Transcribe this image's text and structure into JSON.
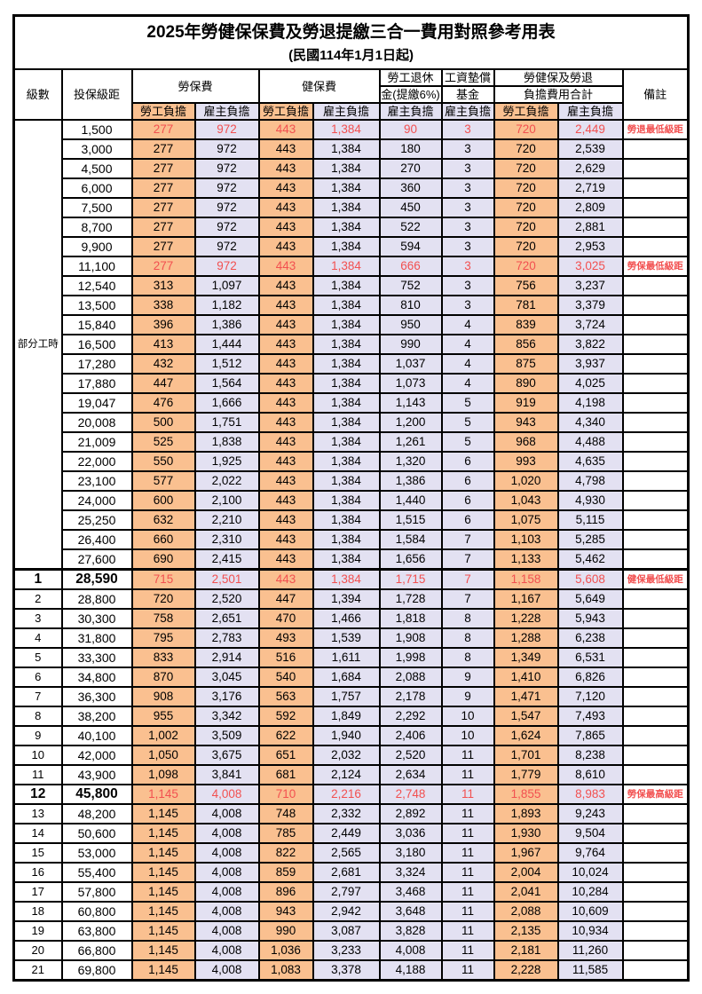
{
  "page": {
    "title": "2025年勞健保保費及勞退提繳三合一費用對照參考用表",
    "subtitle": "(民國114年1月1日起)"
  },
  "table": {
    "headers": {
      "level": "級數",
      "bracket": "投保級距",
      "labor_insurance": "勞保費",
      "health_insurance": "健保費",
      "pension_line1": "勞工退休",
      "pension_line2": "金(提繳6%)",
      "wage_arrears_line1": "工資墊償",
      "wage_arrears_line2": "基金",
      "total_line1": "勞健保及勞退",
      "total_line2": "負擔費用合計",
      "remark": "備註",
      "employee_share": "勞工負擔",
      "employer_share": "雇主負擔"
    },
    "part_time_label": "部分工時",
    "colors": {
      "employee_bg": "#FAC090",
      "employer_bg": "#E3E1F2",
      "highlight_text": "#F25050"
    },
    "rows": [
      {
        "level": "",
        "bracket": "1,500",
        "values": [
          "277",
          "972",
          "443",
          "1,384",
          "90",
          "3",
          "720",
          "2,449"
        ],
        "remark": "勞退最低級距",
        "highlight": true,
        "bold": false
      },
      {
        "level": "",
        "bracket": "3,000",
        "values": [
          "277",
          "972",
          "443",
          "1,384",
          "180",
          "3",
          "720",
          "2,539"
        ],
        "remark": "",
        "highlight": false,
        "bold": false
      },
      {
        "level": "",
        "bracket": "4,500",
        "values": [
          "277",
          "972",
          "443",
          "1,384",
          "270",
          "3",
          "720",
          "2,629"
        ],
        "remark": "",
        "highlight": false,
        "bold": false
      },
      {
        "level": "",
        "bracket": "6,000",
        "values": [
          "277",
          "972",
          "443",
          "1,384",
          "360",
          "3",
          "720",
          "2,719"
        ],
        "remark": "",
        "highlight": false,
        "bold": false
      },
      {
        "level": "",
        "bracket": "7,500",
        "values": [
          "277",
          "972",
          "443",
          "1,384",
          "450",
          "3",
          "720",
          "2,809"
        ],
        "remark": "",
        "highlight": false,
        "bold": false
      },
      {
        "level": "",
        "bracket": "8,700",
        "values": [
          "277",
          "972",
          "443",
          "1,384",
          "522",
          "3",
          "720",
          "2,881"
        ],
        "remark": "",
        "highlight": false,
        "bold": false
      },
      {
        "level": "",
        "bracket": "9,900",
        "values": [
          "277",
          "972",
          "443",
          "1,384",
          "594",
          "3",
          "720",
          "2,953"
        ],
        "remark": "",
        "highlight": false,
        "bold": false
      },
      {
        "level": "",
        "bracket": "11,100",
        "values": [
          "277",
          "972",
          "443",
          "1,384",
          "666",
          "3",
          "720",
          "3,025"
        ],
        "remark": "勞保最低級距",
        "highlight": true,
        "bold": false
      },
      {
        "level": "",
        "bracket": "12,540",
        "values": [
          "313",
          "1,097",
          "443",
          "1,384",
          "752",
          "3",
          "756",
          "3,237"
        ],
        "remark": "",
        "highlight": false,
        "bold": false
      },
      {
        "level": "",
        "bracket": "13,500",
        "values": [
          "338",
          "1,182",
          "443",
          "1,384",
          "810",
          "3",
          "781",
          "3,379"
        ],
        "remark": "",
        "highlight": false,
        "bold": false
      },
      {
        "level": "",
        "bracket": "15,840",
        "values": [
          "396",
          "1,386",
          "443",
          "1,384",
          "950",
          "4",
          "839",
          "3,724"
        ],
        "remark": "",
        "highlight": false,
        "bold": false
      },
      {
        "level": "",
        "bracket": "16,500",
        "values": [
          "413",
          "1,444",
          "443",
          "1,384",
          "990",
          "4",
          "856",
          "3,822"
        ],
        "remark": "",
        "highlight": false,
        "bold": false
      },
      {
        "level": "",
        "bracket": "17,280",
        "values": [
          "432",
          "1,512",
          "443",
          "1,384",
          "1,037",
          "4",
          "875",
          "3,937"
        ],
        "remark": "",
        "highlight": false,
        "bold": false
      },
      {
        "level": "",
        "bracket": "17,880",
        "values": [
          "447",
          "1,564",
          "443",
          "1,384",
          "1,073",
          "4",
          "890",
          "4,025"
        ],
        "remark": "",
        "highlight": false,
        "bold": false
      },
      {
        "level": "",
        "bracket": "19,047",
        "values": [
          "476",
          "1,666",
          "443",
          "1,384",
          "1,143",
          "5",
          "919",
          "4,198"
        ],
        "remark": "",
        "highlight": false,
        "bold": false
      },
      {
        "level": "",
        "bracket": "20,008",
        "values": [
          "500",
          "1,751",
          "443",
          "1,384",
          "1,200",
          "5",
          "943",
          "4,340"
        ],
        "remark": "",
        "highlight": false,
        "bold": false
      },
      {
        "level": "",
        "bracket": "21,009",
        "values": [
          "525",
          "1,838",
          "443",
          "1,384",
          "1,261",
          "5",
          "968",
          "4,488"
        ],
        "remark": "",
        "highlight": false,
        "bold": false
      },
      {
        "level": "",
        "bracket": "22,000",
        "values": [
          "550",
          "1,925",
          "443",
          "1,384",
          "1,320",
          "6",
          "993",
          "4,635"
        ],
        "remark": "",
        "highlight": false,
        "bold": false
      },
      {
        "level": "",
        "bracket": "23,100",
        "values": [
          "577",
          "2,022",
          "443",
          "1,384",
          "1,386",
          "6",
          "1,020",
          "4,798"
        ],
        "remark": "",
        "highlight": false,
        "bold": false
      },
      {
        "level": "",
        "bracket": "24,000",
        "values": [
          "600",
          "2,100",
          "443",
          "1,384",
          "1,440",
          "6",
          "1,043",
          "4,930"
        ],
        "remark": "",
        "highlight": false,
        "bold": false
      },
      {
        "level": "",
        "bracket": "25,250",
        "values": [
          "632",
          "2,210",
          "443",
          "1,384",
          "1,515",
          "6",
          "1,075",
          "5,115"
        ],
        "remark": "",
        "highlight": false,
        "bold": false
      },
      {
        "level": "",
        "bracket": "26,400",
        "values": [
          "660",
          "2,310",
          "443",
          "1,384",
          "1,584",
          "7",
          "1,103",
          "5,285"
        ],
        "remark": "",
        "highlight": false,
        "bold": false
      },
      {
        "level": "",
        "bracket": "27,600",
        "values": [
          "690",
          "2,415",
          "443",
          "1,384",
          "1,656",
          "7",
          "1,133",
          "5,462"
        ],
        "remark": "",
        "highlight": false,
        "bold": false
      },
      {
        "level": "1",
        "bracket": "28,590",
        "values": [
          "715",
          "2,501",
          "443",
          "1,384",
          "1,715",
          "7",
          "1,158",
          "5,608"
        ],
        "remark": "健保最低級距",
        "highlight": true,
        "bold": true
      },
      {
        "level": "2",
        "bracket": "28,800",
        "values": [
          "720",
          "2,520",
          "447",
          "1,394",
          "1,728",
          "7",
          "1,167",
          "5,649"
        ],
        "remark": "",
        "highlight": false,
        "bold": false
      },
      {
        "level": "3",
        "bracket": "30,300",
        "values": [
          "758",
          "2,651",
          "470",
          "1,466",
          "1,818",
          "8",
          "1,228",
          "5,943"
        ],
        "remark": "",
        "highlight": false,
        "bold": false
      },
      {
        "level": "4",
        "bracket": "31,800",
        "values": [
          "795",
          "2,783",
          "493",
          "1,539",
          "1,908",
          "8",
          "1,288",
          "6,238"
        ],
        "remark": "",
        "highlight": false,
        "bold": false
      },
      {
        "level": "5",
        "bracket": "33,300",
        "values": [
          "833",
          "2,914",
          "516",
          "1,611",
          "1,998",
          "8",
          "1,349",
          "6,531"
        ],
        "remark": "",
        "highlight": false,
        "bold": false
      },
      {
        "level": "6",
        "bracket": "34,800",
        "values": [
          "870",
          "3,045",
          "540",
          "1,684",
          "2,088",
          "9",
          "1,410",
          "6,826"
        ],
        "remark": "",
        "highlight": false,
        "bold": false
      },
      {
        "level": "7",
        "bracket": "36,300",
        "values": [
          "908",
          "3,176",
          "563",
          "1,757",
          "2,178",
          "9",
          "1,471",
          "7,120"
        ],
        "remark": "",
        "highlight": false,
        "bold": false
      },
      {
        "level": "8",
        "bracket": "38,200",
        "values": [
          "955",
          "3,342",
          "592",
          "1,849",
          "2,292",
          "10",
          "1,547",
          "7,493"
        ],
        "remark": "",
        "highlight": false,
        "bold": false
      },
      {
        "level": "9",
        "bracket": "40,100",
        "values": [
          "1,002",
          "3,509",
          "622",
          "1,940",
          "2,406",
          "10",
          "1,624",
          "7,865"
        ],
        "remark": "",
        "highlight": false,
        "bold": false
      },
      {
        "level": "10",
        "bracket": "42,000",
        "values": [
          "1,050",
          "3,675",
          "651",
          "2,032",
          "2,520",
          "11",
          "1,701",
          "8,238"
        ],
        "remark": "",
        "highlight": false,
        "bold": false
      },
      {
        "level": "11",
        "bracket": "43,900",
        "values": [
          "1,098",
          "3,841",
          "681",
          "2,124",
          "2,634",
          "11",
          "1,779",
          "8,610"
        ],
        "remark": "",
        "highlight": false,
        "bold": false
      },
      {
        "level": "12",
        "bracket": "45,800",
        "values": [
          "1,145",
          "4,008",
          "710",
          "2,216",
          "2,748",
          "11",
          "1,855",
          "8,983"
        ],
        "remark": "勞保最高級距",
        "highlight": true,
        "bold": true
      },
      {
        "level": "13",
        "bracket": "48,200",
        "values": [
          "1,145",
          "4,008",
          "748",
          "2,332",
          "2,892",
          "11",
          "1,893",
          "9,243"
        ],
        "remark": "",
        "highlight": false,
        "bold": false
      },
      {
        "level": "14",
        "bracket": "50,600",
        "values": [
          "1,145",
          "4,008",
          "785",
          "2,449",
          "3,036",
          "11",
          "1,930",
          "9,504"
        ],
        "remark": "",
        "highlight": false,
        "bold": false
      },
      {
        "level": "15",
        "bracket": "53,000",
        "values": [
          "1,145",
          "4,008",
          "822",
          "2,565",
          "3,180",
          "11",
          "1,967",
          "9,764"
        ],
        "remark": "",
        "highlight": false,
        "bold": false
      },
      {
        "level": "16",
        "bracket": "55,400",
        "values": [
          "1,145",
          "4,008",
          "859",
          "2,681",
          "3,324",
          "11",
          "2,004",
          "10,024"
        ],
        "remark": "",
        "highlight": false,
        "bold": false
      },
      {
        "level": "17",
        "bracket": "57,800",
        "values": [
          "1,145",
          "4,008",
          "896",
          "2,797",
          "3,468",
          "11",
          "2,041",
          "10,284"
        ],
        "remark": "",
        "highlight": false,
        "bold": false
      },
      {
        "level": "18",
        "bracket": "60,800",
        "values": [
          "1,145",
          "4,008",
          "943",
          "2,942",
          "3,648",
          "11",
          "2,088",
          "10,609"
        ],
        "remark": "",
        "highlight": false,
        "bold": false
      },
      {
        "level": "19",
        "bracket": "63,800",
        "values": [
          "1,145",
          "4,008",
          "990",
          "3,087",
          "3,828",
          "11",
          "2,135",
          "10,934"
        ],
        "remark": "",
        "highlight": false,
        "bold": false
      },
      {
        "level": "20",
        "bracket": "66,800",
        "values": [
          "1,145",
          "4,008",
          "1,036",
          "3,233",
          "4,008",
          "11",
          "2,181",
          "11,260"
        ],
        "remark": "",
        "highlight": false,
        "bold": false
      },
      {
        "level": "21",
        "bracket": "69,800",
        "values": [
          "1,145",
          "4,008",
          "1,083",
          "3,378",
          "4,188",
          "11",
          "2,228",
          "11,585"
        ],
        "remark": "",
        "highlight": false,
        "bold": false
      }
    ]
  }
}
